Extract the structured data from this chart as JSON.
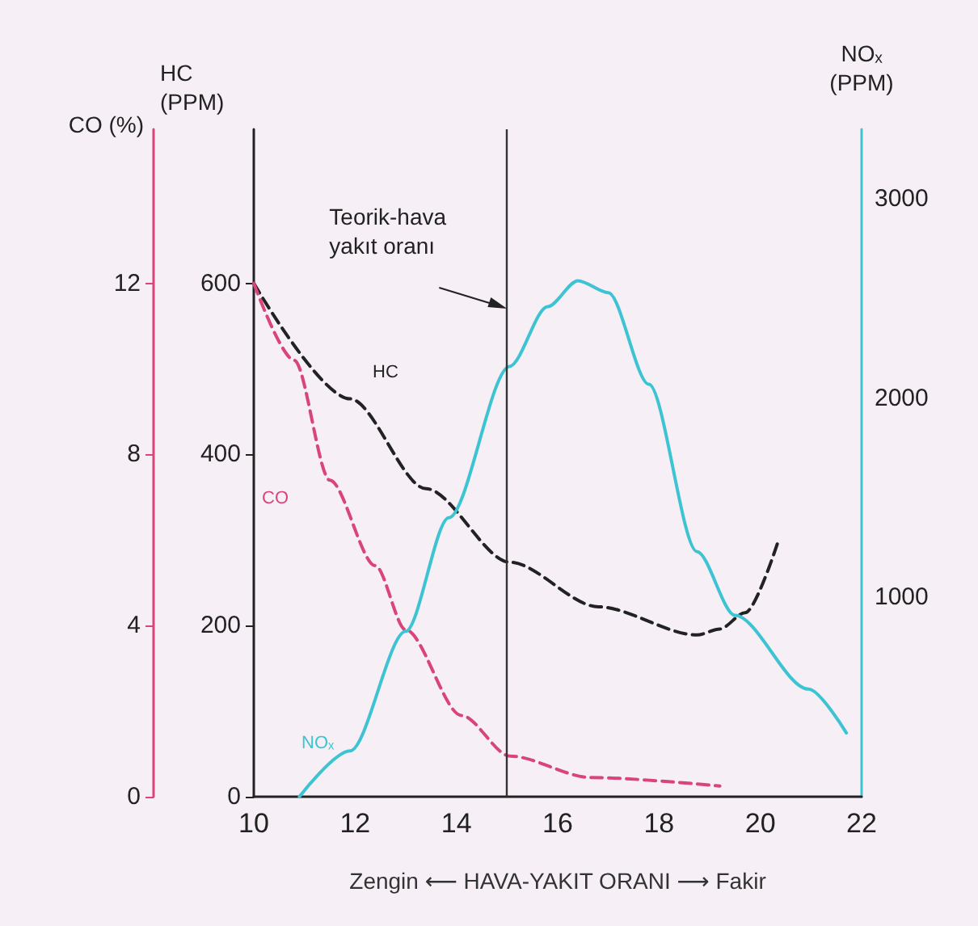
{
  "chart_data": {
    "type": "line",
    "xlabel": "Zengin ⟵ HAVA-YAKIT ORANI ⟶ Fakir",
    "ylabel": "HC\n(PPM)",
    "y2label": "NOₓ\n(PPM)",
    "y3label": "CO (%)",
    "xlim": [
      10,
      22
    ],
    "xticks": [
      10,
      12,
      14,
      16,
      18,
      20,
      22
    ],
    "ylim": [
      0,
      780
    ],
    "yticks": [
      0,
      200,
      400,
      600
    ],
    "y2lim": [
      0,
      3350
    ],
    "y2ticks": [
      1000,
      2000,
      3000
    ],
    "y3lim": [
      0,
      15.6
    ],
    "y3ticks": [
      0,
      4,
      8,
      12
    ],
    "series": [
      {
        "name": "HC",
        "color": "#222222",
        "line_style": "dashed",
        "x": [
          10,
          11.9,
          13.4,
          15.06,
          16.8,
          18.75,
          19.2,
          19.7,
          20.35
        ],
        "values": [
          600,
          465,
          360,
          274,
          222,
          189,
          196,
          215,
          298
        ]
      },
      {
        "name": "CO",
        "color": "#d9457a",
        "line_style": "dashed",
        "axis": "y3",
        "x": [
          10,
          10.8,
          11.5,
          12.4,
          13.0,
          14.1,
          15.06,
          16.65,
          19.2
        ],
        "values": [
          12,
          10.2,
          7.4,
          5.4,
          3.9,
          1.9,
          0.95,
          0.45,
          0.25
        ]
      },
      {
        "name": "NOₓ",
        "color": "#3ec3d3",
        "axis": "y2",
        "x": [
          10.9,
          11.9,
          13.0,
          13.85,
          15.05,
          15.8,
          16.4,
          17.0,
          17.8,
          18.75,
          19.5,
          20.95,
          21.7
        ],
        "values": [
          0,
          230,
          830,
          1400,
          2160,
          2460,
          2590,
          2530,
          2070,
          1230,
          910,
          540,
          320
        ]
      }
    ],
    "ref_lines": [
      {
        "axis": "x",
        "value": 15,
        "label": "Teorik-hava\nyakıt oranı",
        "color": "#333333"
      }
    ]
  }
}
